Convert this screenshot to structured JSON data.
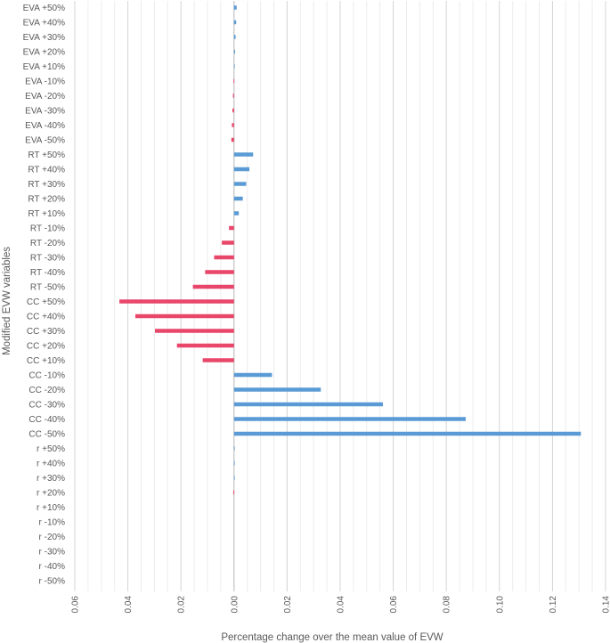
{
  "chart_data": {
    "type": "bar",
    "orientation": "horizontal",
    "xlabel": "Percentage change over the mean value of EVW",
    "ylabel": "Modified EVW variables",
    "xlim": [
      -0.06,
      0.14
    ],
    "x_ticks": [
      -0.06,
      -0.04,
      -0.02,
      0.0,
      0.02,
      0.04,
      0.06,
      0.08,
      0.1,
      0.12,
      0.14
    ],
    "x_tick_labels": [
      "0.06",
      "0.04",
      "0.02",
      "0.00",
      "0.02",
      "0.04",
      "0.06",
      "0.08",
      "0.10",
      "0.12",
      "0.14"
    ],
    "grid": "vertical",
    "colors": {
      "positive": "#5b9bd5",
      "negative": "#e8476a"
    },
    "categories": [
      "EVA +50%",
      "EVA +40%",
      "EVA +30%",
      "EVA +20%",
      "EVA +10%",
      "EVA -10%",
      "EVA -20%",
      "EVA -30%",
      "EVA -40%",
      "EVA -50%",
      "RT +50%",
      "RT +40%",
      "RT +30%",
      "RT +20%",
      "RT +10%",
      "RT -10%",
      "RT -20%",
      "RT -30%",
      "RT -40%",
      "RT -50%",
      "CC +50%",
      "CC +40%",
      "CC +30%",
      "CC +20%",
      "CC +10%",
      "CC -10%",
      "CC -20%",
      "CC -30%",
      "CC -40%",
      "CC -50%",
      "r +50%",
      "r +40%",
      "r +30%",
      "r +20%",
      "r +10%",
      "r -10%",
      "r -20%",
      "r -30%",
      "r -40%",
      "r -50%"
    ],
    "values": [
      0.001,
      0.0008,
      0.0006,
      0.0004,
      0.0002,
      -0.0002,
      -0.0004,
      -0.0006,
      -0.0008,
      -0.001,
      0.0072,
      0.0058,
      0.0046,
      0.0033,
      0.0018,
      -0.0019,
      -0.0046,
      -0.0075,
      -0.0109,
      -0.0155,
      -0.0432,
      -0.0372,
      -0.0298,
      -0.0215,
      -0.0118,
      0.0143,
      0.0327,
      0.0561,
      0.0873,
      0.1307,
      0.0002,
      0.0001,
      0.0001,
      -0.0003,
      0.0,
      0.0,
      0.0,
      0.0,
      0.0,
      0.0
    ]
  }
}
